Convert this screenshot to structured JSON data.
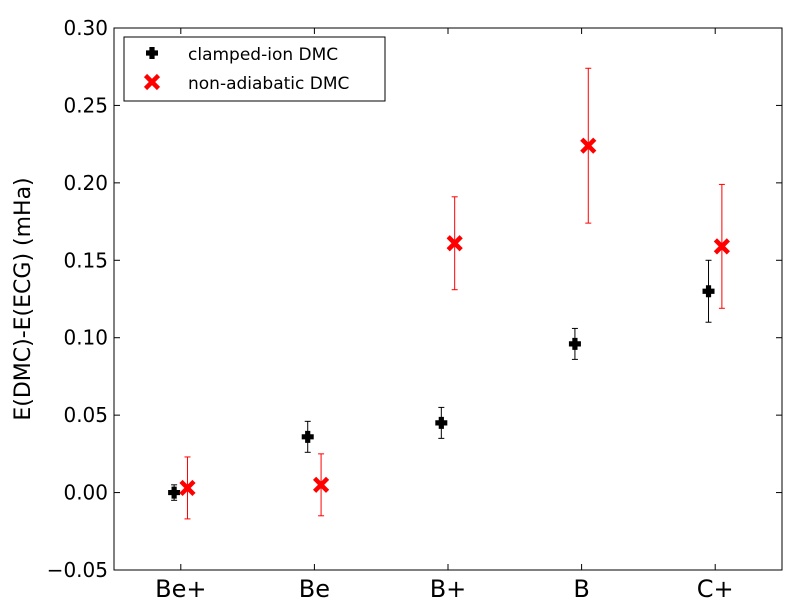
{
  "chart_data": {
    "type": "scatter",
    "ylabel": "E(DMC)-E(ECG) (mHa)",
    "xlabel": "",
    "title": "",
    "categories": [
      "Be+",
      "Be",
      "B+",
      "B",
      "C+"
    ],
    "ylim": [
      -0.05,
      0.3
    ],
    "yticks": [
      -0.05,
      0.0,
      0.05,
      0.1,
      0.15,
      0.2,
      0.25,
      0.3
    ],
    "ytick_labels": [
      "−0.05",
      "0.00",
      "0.05",
      "0.10",
      "0.15",
      "0.20",
      "0.25",
      "0.30"
    ],
    "grid": false,
    "legend_position": "top-left",
    "series": [
      {
        "name": "clamped-ion DMC",
        "color": "#000000",
        "marker": "plus",
        "offset": -0.05,
        "values": [
          0.0,
          0.036,
          0.045,
          0.096,
          0.13
        ],
        "errors": [
          0.005,
          0.01,
          0.01,
          0.01,
          0.02
        ]
      },
      {
        "name": "non-adiabatic DMC",
        "color": "#ff0000",
        "marker": "x",
        "offset": 0.05,
        "values": [
          0.003,
          0.005,
          0.161,
          0.224,
          0.159
        ],
        "errors": [
          0.02,
          0.02,
          0.03,
          0.05,
          0.04
        ]
      }
    ]
  }
}
